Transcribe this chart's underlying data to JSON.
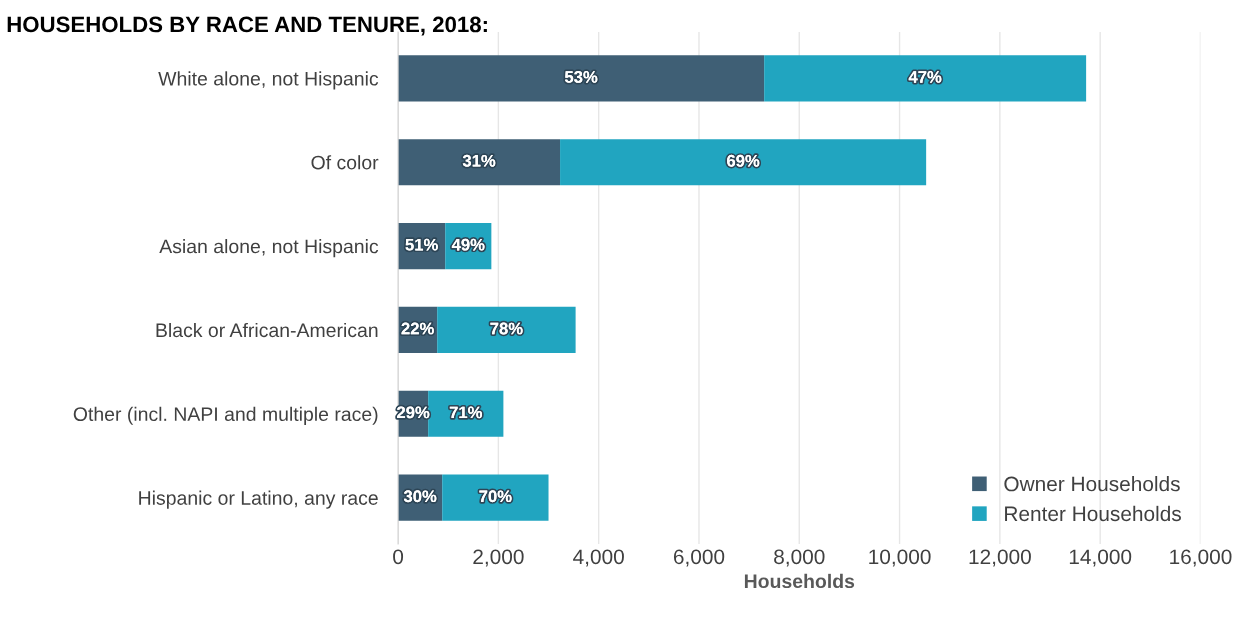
{
  "chart_data": {
    "type": "bar",
    "orientation": "horizontal",
    "stacked": true,
    "title": "HOUSEHOLDS BY RACE AND TENURE, 2018:",
    "xlabel": "Households",
    "categories": [
      "White alone, not Hispanic",
      "Of color",
      "Asian alone, not Hispanic",
      "Black or African-American",
      "Other (incl. NAPI and multiple race)",
      "Hispanic or Latino, any race"
    ],
    "series": [
      {
        "name": "Owner Households",
        "color": "#3f5f75",
        "values": [
          7300,
          3230,
          940,
          780,
          600,
          880
        ]
      },
      {
        "name": "Renter Households",
        "color": "#21a5c0",
        "values": [
          6420,
          7300,
          920,
          2760,
          1500,
          2120
        ]
      }
    ],
    "annotations": [
      "53%",
      "47%",
      "31%",
      "69%",
      "51%",
      "49%",
      "22%",
      "78%",
      "29%",
      "71%",
      "30%",
      "70%"
    ],
    "xlim": [
      0,
      16000
    ],
    "xticks": [
      {
        "value": 0,
        "label": "0"
      },
      {
        "value": 2000,
        "label": "2,000"
      },
      {
        "value": 4000,
        "label": "4,000"
      },
      {
        "value": 6000,
        "label": "6,000"
      },
      {
        "value": 8000,
        "label": "8,000"
      },
      {
        "value": 10000,
        "label": "10,000"
      },
      {
        "value": 12000,
        "label": "12,000"
      },
      {
        "value": 14000,
        "label": "14,000"
      },
      {
        "value": 16000,
        "label": "16,000"
      }
    ],
    "grid": "x",
    "legend": "bottom right"
  }
}
